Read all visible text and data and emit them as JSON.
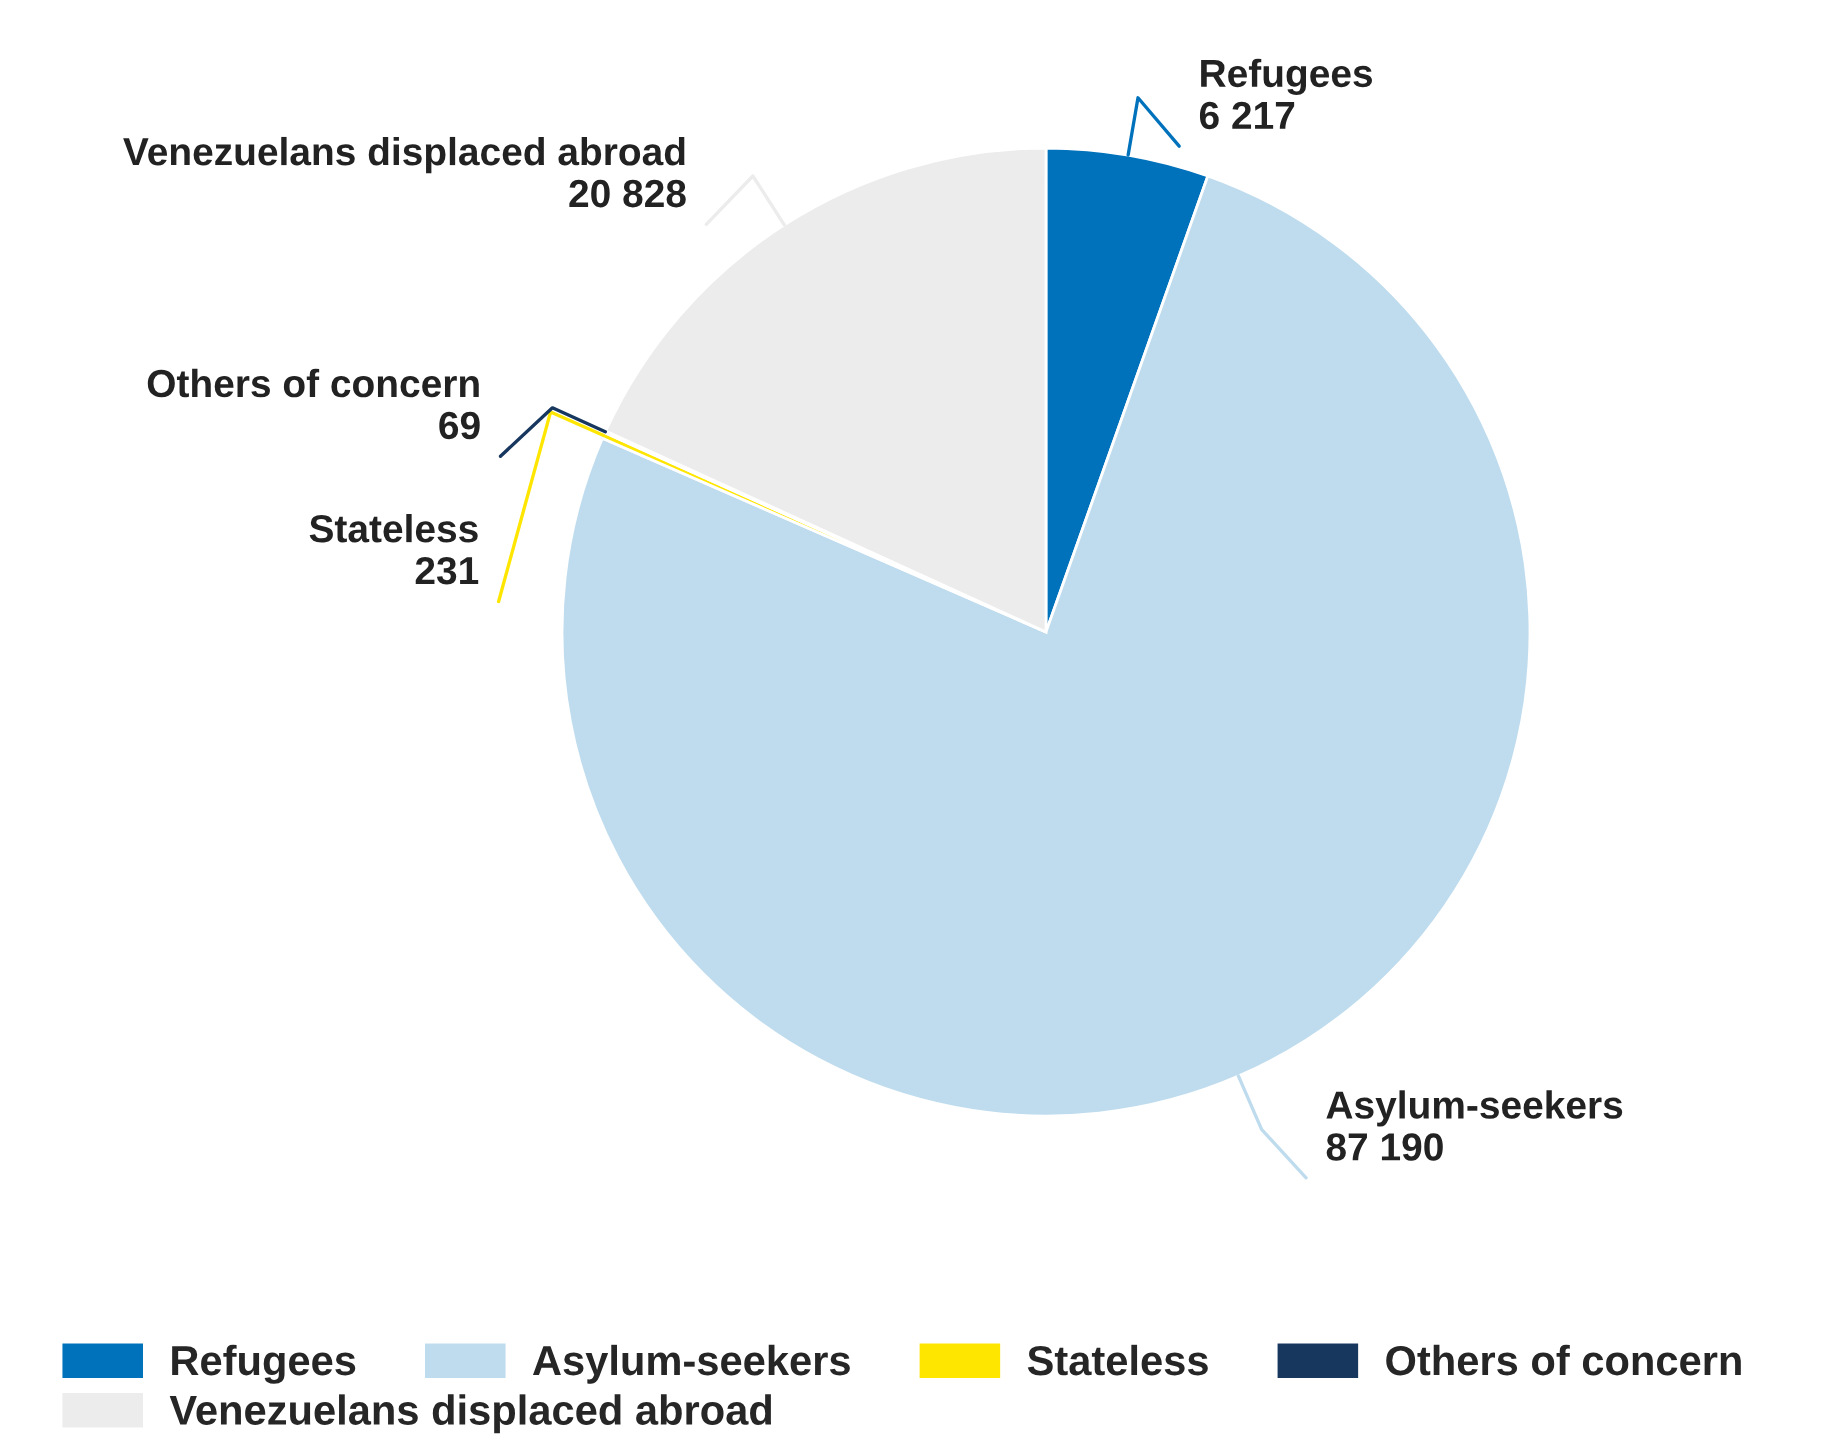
{
  "chart_data": {
    "type": "pie",
    "categories": [
      "Refugees",
      "Asylum-seekers",
      "Stateless",
      "Others of concern",
      "Venezuelans displaced abroad"
    ],
    "values": [
      6217,
      87190,
      231,
      69,
      20828
    ],
    "value_labels": [
      "6 217",
      "87 190",
      "231",
      "69",
      "20 828"
    ],
    "colors": [
      "#0072bc",
      "#bfdcee",
      "#ffe600",
      "#18375f",
      "#ececec"
    ],
    "legend": "bottom"
  }
}
